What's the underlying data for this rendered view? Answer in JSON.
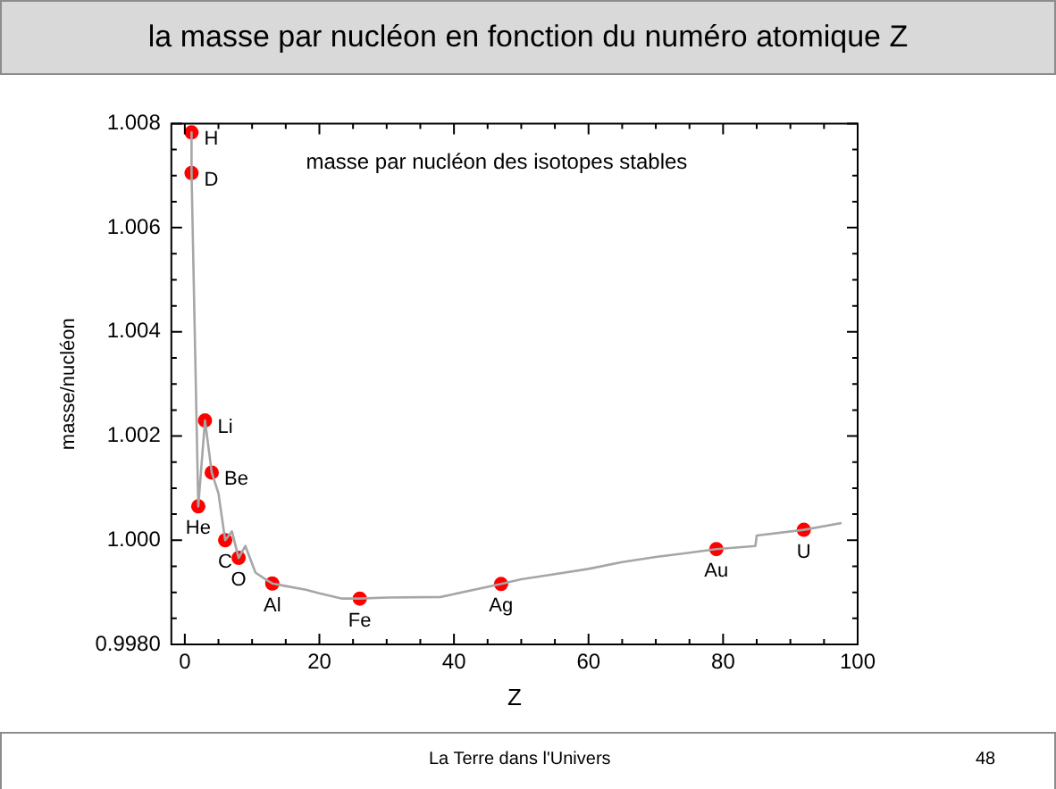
{
  "chart_data": {
    "type": "line",
    "title": "la masse par nucléon en fonction du numéro atomique Z",
    "xlabel": "Z",
    "ylabel": "masse/nucléon",
    "xlim": [
      -2,
      100
    ],
    "xticks": [
      0,
      20,
      40,
      60,
      80,
      100
    ],
    "ylim": [
      0.998,
      1.008
    ],
    "yticks": [
      {
        "value": 0.998,
        "label": "0.9980"
      },
      {
        "value": 1.0,
        "label": "1.000"
      },
      {
        "value": 1.002,
        "label": "1.002"
      },
      {
        "value": 1.004,
        "label": "1.004"
      },
      {
        "value": 1.006,
        "label": "1.006"
      },
      {
        "value": 1.008,
        "label": "1.008"
      }
    ],
    "grid": false,
    "legend": false,
    "marker": "none",
    "line_style": "solid",
    "series": [
      {
        "color": "#a6a6a6",
        "x": [
          1,
          1,
          2,
          3,
          4,
          5,
          6,
          7,
          8,
          9,
          10.5,
          12,
          13,
          15,
          18,
          20,
          23.4,
          26,
          30,
          38,
          47,
          50,
          55,
          60,
          65,
          70,
          75,
          79,
          84.8,
          85,
          92,
          97.6
        ],
        "values": [
          1.00783,
          1.00705,
          1.00065,
          1.0023,
          1.0013,
          1.0009,
          1.0,
          1.00017,
          0.99966,
          0.99989,
          0.99938,
          0.99925,
          0.99917,
          0.99912,
          0.99905,
          0.99898,
          0.99888,
          0.99888,
          0.9989,
          0.99891,
          0.99916,
          0.99925,
          0.99935,
          0.99945,
          0.99958,
          0.99968,
          0.99976,
          0.99983,
          0.99989,
          1.00009,
          1.0002,
          1.00033
        ]
      },
      {
        "type": "scatter",
        "color": "#ff0000",
        "marker": "circle",
        "x": [
          1,
          1,
          2,
          3,
          4,
          6,
          8,
          13,
          26,
          47,
          79,
          92
        ],
        "values": [
          1.00783,
          1.00705,
          1.00065,
          1.0023,
          1.0013,
          1.0,
          0.99966,
          0.99917,
          0.99888,
          0.99916,
          0.99983,
          1.0002
        ]
      }
    ],
    "annotations": [
      {
        "text": "H",
        "x": 1,
        "y": 1.00783
      },
      {
        "text": "D",
        "x": 1,
        "y": 1.00705
      },
      {
        "text": "He",
        "x": 2,
        "y": 1.00065
      },
      {
        "text": "Li",
        "x": 3,
        "y": 1.0023
      },
      {
        "text": "Be",
        "x": 4,
        "y": 1.0013
      },
      {
        "text": "C",
        "x": 6,
        "y": 1.0
      },
      {
        "text": "O",
        "x": 8,
        "y": 0.99966
      },
      {
        "text": "Al",
        "x": 13,
        "y": 0.99917
      },
      {
        "text": "Fe",
        "x": 26,
        "y": 0.99888
      },
      {
        "text": "Ag",
        "x": 47,
        "y": 0.99916
      },
      {
        "text": "Au",
        "x": 79,
        "y": 0.99983
      },
      {
        "text": "U",
        "x": 92,
        "y": 1.0002
      },
      "masse par nucléon des isotopes stables",
      "La Terre dans l'Univers",
      "48"
    ]
  }
}
